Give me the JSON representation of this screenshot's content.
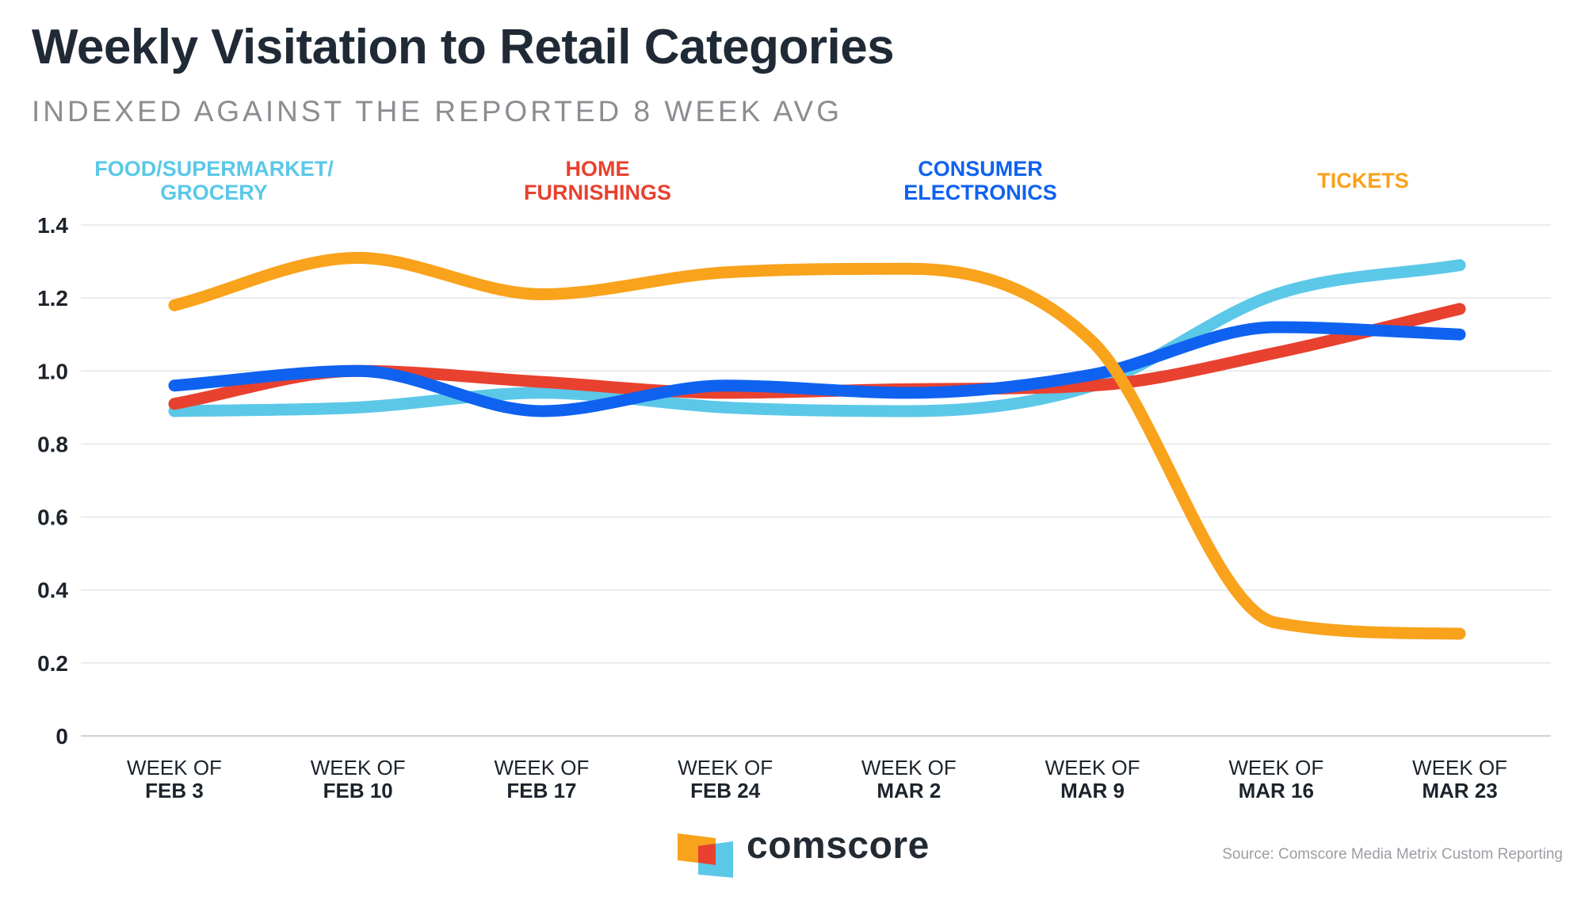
{
  "header": {
    "title": "Weekly Visitation to Retail Categories",
    "subtitle": "INDEXED AGAINST THE REPORTED 8 WEEK AVG"
  },
  "legend": {
    "food_line1": "FOOD/SUPERMARKET/",
    "food_line2": "GROCERY",
    "home_line1": "HOME",
    "home_line2": "FURNISHINGS",
    "electronics_line1": "CONSUMER",
    "electronics_line2": "ELECTRONICS",
    "tickets": "TICKETS"
  },
  "chart_data": {
    "type": "line",
    "title": "Weekly Visitation to Retail Categories",
    "subtitle": "INDEXED AGAINST THE REPORTED 8 WEEK AVG",
    "xlabel": "",
    "ylabel": "",
    "ylim": [
      0,
      1.4
    ],
    "y_ticks": [
      0,
      0.2,
      0.4,
      0.6,
      0.8,
      1.0,
      1.2,
      1.4
    ],
    "y_tick_labels": [
      "0",
      "0.2",
      "0.4",
      "0.6",
      "0.8",
      "1.0",
      "1.2",
      "1.4"
    ],
    "grid": true,
    "legend_position": "top",
    "categories": [
      {
        "line1": "WEEK OF",
        "line2": "FEB 3"
      },
      {
        "line1": "WEEK OF",
        "line2": "FEB 10"
      },
      {
        "line1": "WEEK OF",
        "line2": "FEB 17"
      },
      {
        "line1": "WEEK OF",
        "line2": "FEB 24"
      },
      {
        "line1": "WEEK OF",
        "line2": "MAR 2"
      },
      {
        "line1": "WEEK OF",
        "line2": "MAR 9"
      },
      {
        "line1": "WEEK OF",
        "line2": "MAR 16"
      },
      {
        "line1": "WEEK OF",
        "line2": "MAR 23"
      }
    ],
    "series": [
      {
        "name": "FOOD/SUPERMARKET/GROCERY",
        "key": "food",
        "color": "#5bc8e8",
        "values": [
          0.89,
          0.9,
          0.94,
          0.9,
          0.89,
          0.96,
          1.21,
          1.29
        ]
      },
      {
        "name": "HOME FURNISHINGS",
        "key": "home",
        "color": "#e8412f",
        "values": [
          0.91,
          1.0,
          0.97,
          0.94,
          0.95,
          0.96,
          1.05,
          1.17
        ]
      },
      {
        "name": "CONSUMER ELECTRONICS",
        "key": "electronics",
        "color": "#0f62f0",
        "values": [
          0.96,
          1.0,
          0.89,
          0.96,
          0.94,
          0.99,
          1.12,
          1.1
        ]
      },
      {
        "name": "TICKETS",
        "key": "tickets",
        "color": "#f9a21b",
        "values": [
          1.18,
          1.31,
          1.21,
          1.27,
          1.28,
          1.08,
          0.31,
          0.28
        ]
      }
    ]
  },
  "footer": {
    "brand": "comscore",
    "source": "Source: Comscore Media Metrix Custom Reporting"
  },
  "colors": {
    "food": "#5bc8e8",
    "home": "#e8412f",
    "electronics": "#0f62f0",
    "tickets": "#f9a21b",
    "logo_orange": "#f9a21b",
    "logo_red": "#e8412f",
    "logo_cyan": "#5bc8e8"
  }
}
